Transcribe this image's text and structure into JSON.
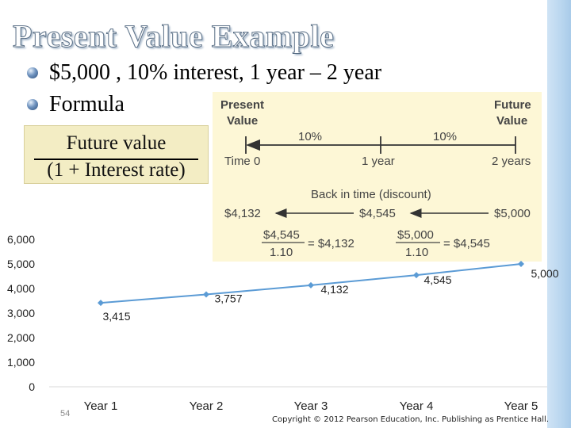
{
  "slide": {
    "title": "Present Value Example",
    "bullets": [
      "$5,000 , 10% interest, 1 year – 2 year",
      "Formula"
    ],
    "slide_number": "54",
    "copyright": "Copyright © 2012 Pearson Education, Inc. Publishing as Prentice Hall."
  },
  "formula": {
    "numerator": "Future value",
    "denominator": "(1 + Interest rate)"
  },
  "timeline": {
    "present_label_1": "Present",
    "present_label_2": "Value",
    "future_label_1": "Future",
    "future_label_2": "Value",
    "rate_1": "10%",
    "rate_2": "10%",
    "time_0": "Time 0",
    "time_1": "1 year",
    "time_2": "2 years",
    "caption": "Back in time (discount)",
    "value_0": "$4,132",
    "value_1": "$4,545",
    "value_2": "$5,000",
    "calc_1_num": "$4,545",
    "calc_1_den": "1.10",
    "calc_1_result": "= $4,132",
    "calc_2_num": "$5,000",
    "calc_2_den": "1.10",
    "calc_2_result": "= $4,545"
  },
  "colors": {
    "line": "#5b9bd5",
    "formula_bg": "#f3edc4",
    "timeline_bg": "#fdf7d6",
    "timeline_text": "#4a4a4a"
  },
  "chart_data": {
    "type": "line",
    "categories": [
      "Year 1",
      "Year 2",
      "Year 3",
      "Year 4",
      "Year 5"
    ],
    "series": [
      {
        "values": [
          3415,
          3757,
          4132,
          4545,
          5000
        ]
      }
    ],
    "data_labels": [
      "3,415",
      "3,757",
      "4,132",
      "4,545",
      "5,000"
    ],
    "y_ticks": [
      "0",
      "1,000",
      "2,000",
      "3,000",
      "4,000",
      "5,000",
      "6,000"
    ],
    "ylim": [
      0,
      6000
    ],
    "grid": false,
    "legend": "none"
  }
}
